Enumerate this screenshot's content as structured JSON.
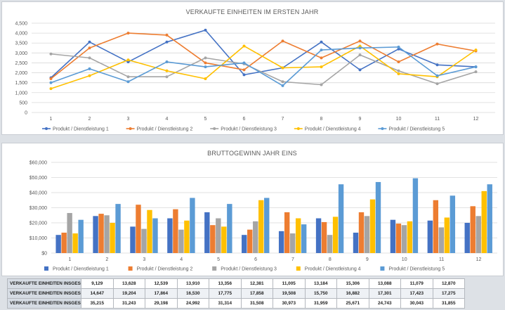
{
  "chart_data": [
    {
      "type": "line",
      "title": "VERKAUFTE EINHEITEN IM ERSTEN JAHR",
      "categories": [
        "1",
        "2",
        "3",
        "4",
        "5",
        "6",
        "7",
        "8",
        "9",
        "10",
        "11",
        "12"
      ],
      "ylim": [
        0,
        4500
      ],
      "yticks": [
        "0",
        "500",
        "1,000",
        "1,500",
        "2,000",
        "2,500",
        "3,000",
        "3,500",
        "4,000",
        "4,500"
      ],
      "ytick_values": [
        0,
        500,
        1000,
        1500,
        2000,
        2500,
        3000,
        3500,
        4000,
        4500
      ],
      "series": [
        {
          "name": "Produkt / Dienstleistung 1",
          "color": "#4472c4",
          "values": [
            1750,
            3550,
            2550,
            3550,
            4150,
            1900,
            2250,
            3550,
            2150,
            3200,
            2400,
            2300
          ]
        },
        {
          "name": "Produkt / Dienstleistung 2",
          "color": "#ed7d31",
          "values": [
            1700,
            3250,
            4000,
            3900,
            2500,
            2150,
            3600,
            2750,
            3600,
            2550,
            3450,
            3100
          ]
        },
        {
          "name": "Produkt / Dienstleistung 3",
          "color": "#a5a5a5",
          "values": [
            2950,
            2750,
            1800,
            1800,
            2750,
            2450,
            1550,
            1400,
            2900,
            2100,
            1450,
            2050
          ]
        },
        {
          "name": "Produkt / Dienstleistung 4",
          "color": "#ffc000",
          "values": [
            1200,
            1850,
            2650,
            2100,
            1700,
            3350,
            2250,
            2300,
            3350,
            1950,
            1800,
            3150
          ]
        },
        {
          "name": "Produkt / Dienstleistung 5",
          "color": "#5b9bd5",
          "values": [
            1500,
            2200,
            1550,
            2550,
            2300,
            2500,
            1350,
            3150,
            3250,
            3300,
            1850,
            2300
          ]
        }
      ],
      "legend": "bottom"
    },
    {
      "type": "bar",
      "title": "BRUTTOGEWINN JAHR EINS",
      "categories": [
        "1",
        "2",
        "3",
        "4",
        "5",
        "6",
        "7",
        "8",
        "9",
        "10",
        "11",
        "12"
      ],
      "ylim": [
        0,
        60000
      ],
      "yticks": [
        "$0",
        "$10,000",
        "$20,000",
        "$30,000",
        "$40,000",
        "$50,000",
        "$60,000"
      ],
      "ytick_values": [
        0,
        10000,
        20000,
        30000,
        40000,
        50000,
        60000
      ],
      "series": [
        {
          "name": "Produkt / Dienstleistung 1",
          "color": "#4472c4",
          "values": [
            12000,
            24500,
            17500,
            23000,
            27000,
            12000,
            14500,
            23000,
            13500,
            22000,
            21500,
            20000
          ]
        },
        {
          "name": "Produkt / Dienstleistung 2",
          "color": "#ed7d31",
          "values": [
            13500,
            26000,
            32000,
            29000,
            18500,
            15500,
            27000,
            20500,
            27000,
            19500,
            35000,
            31000
          ]
        },
        {
          "name": "Produkt / Dienstleistung 3",
          "color": "#a5a5a5",
          "values": [
            26500,
            25000,
            16000,
            15500,
            23000,
            21000,
            13000,
            12000,
            24500,
            18500,
            17000,
            24500
          ]
        },
        {
          "name": "Produkt / Dienstleistung 4",
          "color": "#ffc000",
          "values": [
            13000,
            20000,
            28500,
            21500,
            17500,
            35000,
            23000,
            24000,
            35500,
            21000,
            23500,
            41000
          ]
        },
        {
          "name": "Produkt / Dienstleistung 5",
          "color": "#5b9bd5",
          "values": [
            22000,
            32500,
            23000,
            36500,
            32500,
            36500,
            19000,
            45500,
            47000,
            49500,
            38000,
            45500
          ]
        }
      ],
      "legend": "bottom"
    }
  ],
  "table": {
    "rows": [
      {
        "label": "VERKAUFTE EINHEITEN INSGES",
        "values": [
          "9,129",
          "13,628",
          "12,539",
          "13,910",
          "13,356",
          "12,381",
          "11,005",
          "13,184",
          "15,306",
          "13,088",
          "11,079",
          "12,870"
        ]
      },
      {
        "label": "VERKAUFTE EINHEITEN INSGES",
        "values": [
          "14,647",
          "19,204",
          "17,864",
          "16,530",
          "17,775",
          "17,858",
          "19,508",
          "15,750",
          "16,882",
          "17,301",
          "17,423",
          "17,275"
        ]
      },
      {
        "label": "VERKAUFTE EINHEITEN INSGES",
        "values": [
          "35,215",
          "31,243",
          "29,198",
          "24,992",
          "31,314",
          "31,508",
          "30,973",
          "31,959",
          "25,671",
          "24,743",
          "30,043",
          "31,855"
        ]
      }
    ]
  }
}
